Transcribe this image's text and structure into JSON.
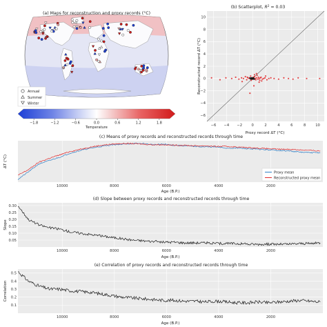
{
  "colors": {
    "proxy": "#2f7fc6",
    "reconstructed": "#e0292b",
    "line": "#1a1a1a",
    "panel_bg": "#ebebeb"
  },
  "chart_data": [
    {
      "id": "a",
      "type": "heatmap",
      "title": "(a) Maps for reconstruction and proxy records (°C)",
      "legend": [
        {
          "symbol": "circle",
          "label": "Annual"
        },
        {
          "symbol": "triangle-up",
          "label": "Summer"
        },
        {
          "symbol": "triangle-down",
          "label": "Winter"
        }
      ],
      "colorbar": {
        "label": "Temperature",
        "ticks": [
          "−1.8",
          "−1.2",
          "−0.6",
          "0.0",
          "0.6",
          "1.2",
          "1.8"
        ],
        "range": [
          -2.1,
          2.1
        ]
      }
    },
    {
      "id": "b",
      "type": "scatter",
      "title": "(b) Scatterplot, R² = 0.03",
      "xlabel": "Proxy record ΔT (°C)",
      "ylabel": "Reconstructed record ΔT (°C)",
      "xlim": [
        -7,
        11
      ],
      "ylim": [
        -7,
        11
      ],
      "xticks": [
        "−6",
        "−4",
        "−2",
        "0",
        "2",
        "4",
        "6",
        "8",
        "10"
      ],
      "yticks": [
        "10",
        "8",
        "6",
        "4",
        "2",
        "0",
        "−2",
        "−4",
        "−6"
      ],
      "x": [
        -6.3,
        -5.0,
        -4.1,
        -3.2,
        -2.6,
        -2.1,
        -1.7,
        -1.4,
        -1.1,
        -0.9,
        -0.7,
        -0.5,
        -0.3,
        -0.2,
        0.0,
        0.1,
        0.2,
        0.3,
        0.4,
        0.5,
        0.6,
        0.7,
        0.8,
        0.9,
        1.0,
        1.1,
        1.2,
        1.3,
        1.5,
        1.7,
        1.9,
        2.2,
        2.5,
        2.8,
        3.3,
        4.0,
        4.8,
        5.5,
        6.2,
        7.0,
        8.3,
        10.3,
        -0.4,
        0.2,
        0.6,
        1.0,
        -1.6,
        2.0,
        0.3,
        -0.8,
        1.4
      ],
      "y": [
        0.1,
        -0.2,
        0.1,
        0.0,
        0.2,
        -0.1,
        0.1,
        0.0,
        0.3,
        -0.2,
        0.1,
        0.0,
        0.4,
        -0.3,
        0.0,
        0.2,
        -0.1,
        0.3,
        0.0,
        -0.2,
        0.1,
        0.5,
        -0.1,
        0.2,
        0.0,
        -0.3,
        0.1,
        0.2,
        -0.1,
        0.0,
        0.1,
        -0.2,
        0.0,
        0.1,
        0.0,
        -0.1,
        0.1,
        0.0,
        -0.1,
        0.1,
        0.0,
        0.0,
        -2.4,
        -1.2,
        0.8,
        -0.6,
        -0.5,
        0.4,
        0.6,
        0.2,
        -0.4
      ],
      "identity_line": true
    },
    {
      "id": "c",
      "type": "line",
      "title": "(c) Means of proxy records and reconstructed records through time",
      "xlabel": "Age (B.P.)",
      "ylabel": "ΔT (°C)",
      "xlim": [
        11700,
        0
      ],
      "xticks": [
        "10000",
        "8000",
        "6000",
        "4000",
        "2000"
      ],
      "legend": [
        "Proxy mean",
        "Reconstructed proxy mean"
      ],
      "x": [
        11700,
        11300,
        10900,
        10500,
        10100,
        9700,
        9300,
        8900,
        8500,
        8100,
        7700,
        7300,
        6900,
        6500,
        6100,
        5700,
        5300,
        4900,
        4500,
        4100,
        3700,
        3300,
        2900,
        2500,
        2100,
        1700,
        1300,
        900,
        500,
        100
      ],
      "series": [
        {
          "name": "Proxy mean",
          "values": [
            -0.55,
            -0.42,
            -0.28,
            -0.22,
            -0.16,
            -0.09,
            -0.04,
            0.0,
            0.03,
            0.06,
            0.07,
            0.08,
            0.08,
            0.06,
            0.07,
            0.05,
            0.04,
            0.03,
            0.02,
            0.02,
            0.0,
            0.0,
            -0.01,
            -0.02,
            -0.03,
            -0.04,
            -0.05,
            -0.07,
            -0.08,
            -0.08
          ]
        },
        {
          "name": "Reconstructed proxy mean",
          "values": [
            -0.48,
            -0.38,
            -0.25,
            -0.18,
            -0.12,
            -0.06,
            -0.02,
            0.02,
            0.05,
            0.07,
            0.08,
            0.08,
            0.07,
            0.06,
            0.06,
            0.05,
            0.05,
            0.04,
            0.04,
            0.03,
            0.03,
            0.02,
            0.01,
            0.0,
            -0.01,
            -0.02,
            -0.02,
            -0.03,
            -0.04,
            -0.05
          ]
        }
      ]
    },
    {
      "id": "d",
      "type": "line",
      "title": "(d) Slope between proxy records and reconstructed records through time",
      "xlabel": "Age (B.P.)",
      "ylabel": "Slope",
      "xlim": [
        11700,
        0
      ],
      "ylim": [
        0.0,
        0.32
      ],
      "xticks": [
        "10000",
        "8000",
        "6000",
        "4000",
        "2000"
      ],
      "yticks": [
        "0.30",
        "0.25",
        "0.20",
        "0.15",
        "0.10",
        "0.05"
      ],
      "x": [
        11700,
        11300,
        10900,
        10500,
        10100,
        9700,
        9300,
        8900,
        8500,
        8100,
        7700,
        7300,
        6900,
        6500,
        6100,
        5700,
        5300,
        4900,
        4500,
        4100,
        3700,
        3300,
        2900,
        2500,
        2100,
        1700,
        1300,
        900,
        500,
        100
      ],
      "values": [
        0.3,
        0.2,
        0.16,
        0.14,
        0.13,
        0.11,
        0.1,
        0.09,
        0.08,
        0.07,
        0.06,
        0.05,
        0.045,
        0.04,
        0.035,
        0.035,
        0.03,
        0.03,
        0.03,
        0.025,
        0.025,
        0.025,
        0.02,
        0.02,
        0.02,
        0.02,
        0.02,
        0.025,
        0.025,
        0.03
      ]
    },
    {
      "id": "e",
      "type": "line",
      "title": "(e) Correlation of proxy records and reconstructed records through time",
      "xlabel": "Age (B.P.)",
      "ylabel": "Correlation",
      "xlim": [
        11700,
        0
      ],
      "ylim": [
        0.0,
        0.55
      ],
      "xticks": [
        "10000",
        "8000",
        "6000",
        "4000",
        "2000"
      ],
      "yticks": [
        "0.5",
        "0.4",
        "0.3",
        "0.2",
        "0.1"
      ],
      "x": [
        11700,
        11300,
        10900,
        10500,
        10100,
        9700,
        9300,
        8900,
        8500,
        8100,
        7700,
        7300,
        6900,
        6500,
        6100,
        5700,
        5300,
        4900,
        4500,
        4100,
        3700,
        3300,
        2900,
        2500,
        2100,
        1700,
        1300,
        900,
        500,
        100
      ],
      "values": [
        0.52,
        0.4,
        0.34,
        0.3,
        0.3,
        0.28,
        0.27,
        0.26,
        0.24,
        0.22,
        0.2,
        0.19,
        0.18,
        0.17,
        0.16,
        0.16,
        0.15,
        0.15,
        0.14,
        0.15,
        0.14,
        0.13,
        0.13,
        0.14,
        0.13,
        0.14,
        0.15,
        0.16,
        0.15,
        0.14
      ]
    }
  ]
}
